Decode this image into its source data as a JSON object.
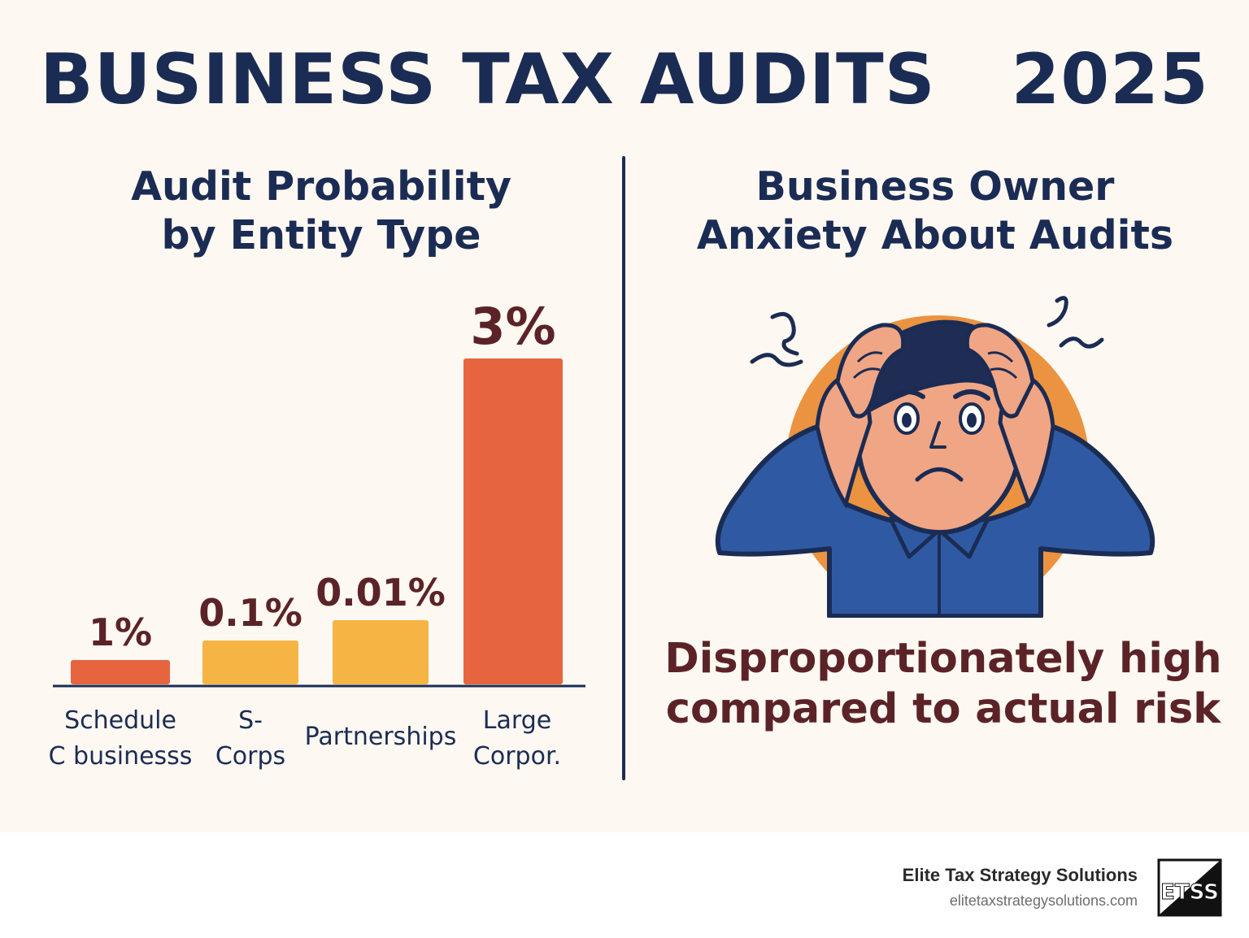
{
  "header": {
    "title": "BUSINESS TAX AUDITS   2025"
  },
  "left_section": {
    "title_line1": "Audit Probability",
    "title_line2": "by Entity Type"
  },
  "right_section": {
    "title_line1": "Business Owner",
    "title_line2": "Anxiety About Audits",
    "caption_line1": "Disproportionately high",
    "caption_line2": "compared to actual risk",
    "figure_icon": "stressed-person-icon"
  },
  "chart_data": {
    "type": "bar",
    "categories": [
      [
        "Schedule",
        "C businesss"
      ],
      [
        "S-",
        "Corps"
      ],
      [
        "Partnerships"
      ],
      [
        "Large",
        "Corpor."
      ]
    ],
    "values": [
      1,
      0.1,
      0.01,
      3
    ],
    "data_labels": [
      "1%",
      "0.1%",
      "0.01%",
      "3%"
    ],
    "colors": [
      "#e6653f",
      "#f5b444",
      "#f5b444",
      "#e6653f"
    ],
    "title": "Audit Probability by Entity Type",
    "legend": "none",
    "grid": false
  },
  "footer": {
    "company": "Elite Tax Strategy Solutions",
    "url": "elitetaxstrategysolutions.com",
    "logo_text": "ETSS",
    "logo_icon": "etss-logo-icon"
  },
  "colors": {
    "background": "#fdf8f1",
    "navy": "#1b2c54",
    "maroon": "#5b2328",
    "orange": "#e6653f",
    "yellow": "#f5b444"
  }
}
